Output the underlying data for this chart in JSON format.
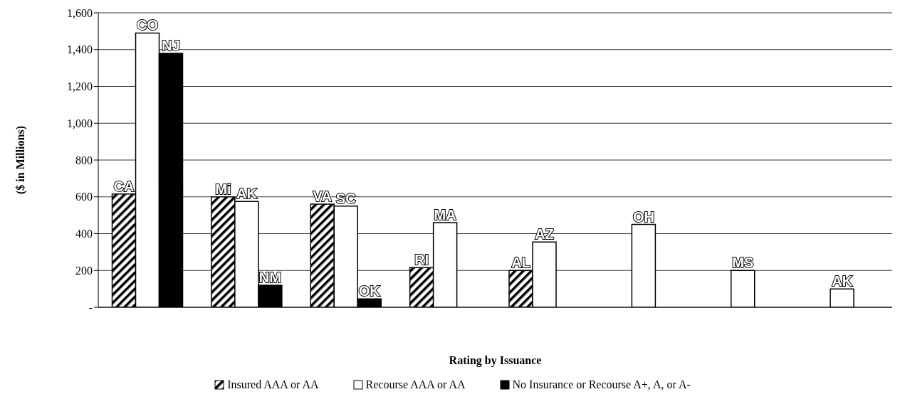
{
  "chart_data": {
    "type": "bar",
    "xlabel": "Rating by Issuance",
    "ylabel": "($ in Millions)",
    "categories": [
      null,
      null,
      null,
      null,
      null,
      null,
      null,
      null
    ],
    "series": [
      {
        "name": "Insured AAA or AA",
        "color": "#000000",
        "values": [
          615,
          600,
          560,
          215,
          200,
          null,
          null,
          null
        ],
        "value_labels": [
          "CA",
          "Mi",
          "VA",
          "RI",
          "AL",
          null,
          null,
          null
        ]
      },
      {
        "name": "Recourse AAA or AA",
        "color": "#ffffff",
        "values": [
          1490,
          575,
          550,
          460,
          355,
          450,
          200,
          100
        ],
        "value_labels": [
          "CO",
          "AK",
          "SC",
          "MA",
          "AZ",
          "OH",
          "MS",
          "AK"
        ]
      },
      {
        "name": "No Insurance or Recourse A+, A, or A-",
        "color": "#000000",
        "values": [
          1380,
          120,
          45,
          null,
          null,
          null,
          null,
          null
        ],
        "value_labels": [
          "NJ",
          "NM",
          "OK",
          null,
          null,
          null,
          null,
          null
        ]
      }
    ],
    "ylim": [
      0,
      1600
    ],
    "yticks": [
      {
        "value": 0,
        "label": "-"
      },
      200,
      400,
      600,
      800,
      {
        "value": 1000,
        "label": "1,000"
      },
      {
        "value": 1200,
        "label": "1,200"
      },
      {
        "value": 1400,
        "label": "1,400"
      },
      {
        "value": 1600,
        "label": "1,600"
      }
    ],
    "grid": "y",
    "legend": "bottom"
  }
}
